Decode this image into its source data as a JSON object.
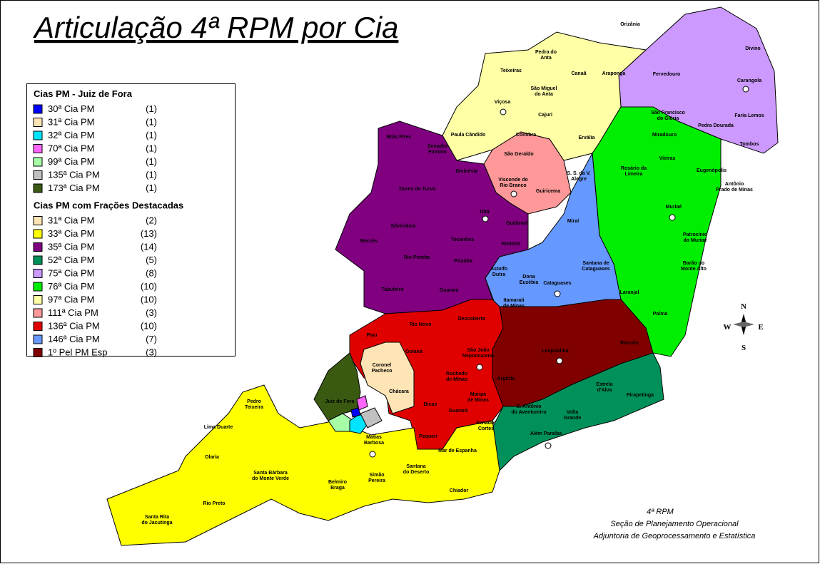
{
  "header": {
    "title": "Articulação 4ª RPM por Cia"
  },
  "legend": {
    "sections": [
      {
        "title": "Cias PM - Juiz de Fora",
        "items": [
          {
            "name": "30ª Cia PM",
            "count": "(1)",
            "color": "#0000ff"
          },
          {
            "name": "31ª Cia PM",
            "count": "(1)",
            "color": "#ffe4b5"
          },
          {
            "name": "32ª Cia PM",
            "count": "(1)",
            "color": "#00e5ff"
          },
          {
            "name": "70ª Cia PM",
            "count": "(1)",
            "color": "#ff66ff"
          },
          {
            "name": "99ª Cia PM",
            "count": "(1)",
            "color": "#a6ffa6"
          },
          {
            "name": "135ª Cia PM",
            "count": "(1)",
            "color": "#c0c0c0"
          },
          {
            "name": "173ª Cia PM",
            "count": "(1)",
            "color": "#3a5a12"
          }
        ]
      },
      {
        "title": "Cias PM com Frações Destacadas",
        "items": [
          {
            "name": "31ª Cia PM",
            "count": "(2)",
            "color": "#ffe4b5"
          },
          {
            "name": "33ª Cia PM",
            "count": "(13)",
            "color": "#ffff00"
          },
          {
            "name": "35ª Cia PM",
            "count": "(14)",
            "color": "#800080"
          },
          {
            "name": "52ª Cia PM",
            "count": "(5)",
            "color": "#00915a"
          },
          {
            "name": "75ª Cia PM",
            "count": "(8)",
            "color": "#cc99ff"
          },
          {
            "name": "76ª Cia PM",
            "count": "(10)",
            "color": "#00ee00"
          },
          {
            "name": "97ª Cia PM",
            "count": "(10)",
            "color": "#ffffa6"
          },
          {
            "name": "111ª Cia PM",
            "count": "(3)",
            "color": "#ff9999"
          },
          {
            "name": "136ª Cia PM",
            "count": "(10)",
            "color": "#e00000"
          },
          {
            "name": "146ª Cia PM",
            "count": "(7)",
            "color": "#6699ff"
          },
          {
            "name": "1º Pel PM Esp",
            "count": "(3)",
            "color": "#800000"
          }
        ]
      }
    ]
  },
  "places": [
    {
      "lines": [
        "Orizânia"
      ]
    },
    {
      "lines": [
        "Divino"
      ]
    },
    {
      "lines": [
        "Pedra do",
        "Anta"
      ]
    },
    {
      "lines": [
        "Teixeiras"
      ]
    },
    {
      "lines": [
        "Canaã"
      ]
    },
    {
      "lines": [
        "Araponga"
      ]
    },
    {
      "lines": [
        "Fervedouro"
      ]
    },
    {
      "lines": [
        "Carangola"
      ]
    },
    {
      "lines": [
        "São Miguel",
        "do Anta"
      ]
    },
    {
      "lines": [
        "Viçosa"
      ]
    },
    {
      "lines": [
        "Cajuri"
      ]
    },
    {
      "lines": [
        "São Francisco",
        "do Glória"
      ]
    },
    {
      "lines": [
        "Faria Lemos"
      ]
    },
    {
      "lines": [
        "Pedra Dourada"
      ]
    },
    {
      "lines": [
        "Tombos"
      ]
    },
    {
      "lines": [
        "Brás Pires"
      ]
    },
    {
      "lines": [
        "Paula Cândido"
      ]
    },
    {
      "lines": [
        "Coimbra"
      ]
    },
    {
      "lines": [
        "Ervália"
      ]
    },
    {
      "lines": [
        "Miradouro"
      ]
    },
    {
      "lines": [
        "Senador",
        "Firmino"
      ]
    },
    {
      "lines": [
        "São Geraldo"
      ]
    },
    {
      "lines": [
        "Vieiras"
      ]
    },
    {
      "lines": [
        "Eugenópolis"
      ]
    },
    {
      "lines": [
        "Divinésia"
      ]
    },
    {
      "lines": [
        "Dores do Turvo"
      ]
    },
    {
      "lines": [
        "Visconde do",
        "Rio Branco"
      ]
    },
    {
      "lines": [
        "Guiricema"
      ]
    },
    {
      "lines": [
        "S. S. da V.",
        "Alegre"
      ]
    },
    {
      "lines": [
        "Rosário da",
        "Limeira"
      ]
    },
    {
      "lines": [
        "Antônio",
        "Prado de Minas"
      ]
    },
    {
      "lines": [
        "Muriaé"
      ]
    },
    {
      "lines": [
        "Ubá"
      ]
    },
    {
      "lines": [
        "Mercês"
      ]
    },
    {
      "lines": [
        "Silveirânia"
      ]
    },
    {
      "lines": [
        "Guidoval"
      ]
    },
    {
      "lines": [
        "Miraí"
      ]
    },
    {
      "lines": [
        "Patrocínio",
        "do Muriaé"
      ]
    },
    {
      "lines": [
        "Tocantins"
      ]
    },
    {
      "lines": [
        "Rodeiro"
      ]
    },
    {
      "lines": [
        "Rio Pomba"
      ]
    },
    {
      "lines": [
        "Piraúba"
      ]
    },
    {
      "lines": [
        "Barão do",
        "Monte Alto"
      ]
    },
    {
      "lines": [
        "Santana de",
        "Cataguases"
      ]
    },
    {
      "lines": [
        "Astolfo",
        "Dutra"
      ]
    },
    {
      "lines": [
        "Dona",
        "Euzébia"
      ]
    },
    {
      "lines": [
        "Cataguases"
      ]
    },
    {
      "lines": [
        "Tabuleiro"
      ]
    },
    {
      "lines": [
        "Guarani"
      ]
    },
    {
      "lines": [
        "Laranjal"
      ]
    },
    {
      "lines": [
        "Itamarati",
        "de Minas"
      ]
    },
    {
      "lines": [
        "Palma"
      ]
    },
    {
      "lines": [
        "Descoberto"
      ]
    },
    {
      "lines": [
        "Rio Novo"
      ]
    },
    {
      "lines": [
        "Piau"
      ]
    },
    {
      "lines": [
        "São João",
        "Nepomuceno"
      ]
    },
    {
      "lines": [
        "Goianá"
      ]
    },
    {
      "lines": [
        "Leopoldina"
      ]
    },
    {
      "lines": [
        "Recreio"
      ]
    },
    {
      "lines": [
        "Coronel",
        "Pacheco"
      ]
    },
    {
      "lines": [
        "Rochedo",
        "de Minas"
      ]
    },
    {
      "lines": [
        "Argirita"
      ]
    },
    {
      "lines": [
        "Estrela",
        "d'Alva"
      ]
    },
    {
      "lines": [
        "Pirapetinga"
      ]
    },
    {
      "lines": [
        "Chácara"
      ]
    },
    {
      "lines": [
        "Juiz de Fora"
      ]
    },
    {
      "lines": [
        "Pedro",
        "Teixeira"
      ]
    },
    {
      "lines": [
        "Maripá",
        "de Minas"
      ]
    },
    {
      "lines": [
        "Bicas"
      ]
    },
    {
      "lines": [
        "Guarará"
      ]
    },
    {
      "lines": [
        "S. Antônio",
        "do Aventureiro"
      ]
    },
    {
      "lines": [
        "Volta",
        "Grande"
      ]
    },
    {
      "lines": [
        "Lima Duarte"
      ]
    },
    {
      "lines": [
        "Senador",
        "Cortes"
      ]
    },
    {
      "lines": [
        "Além Paraíba"
      ]
    },
    {
      "lines": [
        "Matias",
        "Barbosa"
      ]
    },
    {
      "lines": [
        "Pequeri"
      ]
    },
    {
      "lines": [
        "Olaria"
      ]
    },
    {
      "lines": [
        "Mar de Espanha"
      ]
    },
    {
      "lines": [
        "Santa Bárbara",
        "do Monte Verde"
      ]
    },
    {
      "lines": [
        "Santana",
        "do Deserto"
      ]
    },
    {
      "lines": [
        "Simão",
        "Pereira"
      ]
    },
    {
      "lines": [
        "Belmiro",
        "Braga"
      ]
    },
    {
      "lines": [
        "Chiador"
      ]
    },
    {
      "lines": [
        "Rio Preto"
      ]
    },
    {
      "lines": [
        "Santa Rita",
        "do Jacutinga"
      ]
    }
  ],
  "compass": {
    "n": "N",
    "s": "S",
    "e": "E",
    "w": "W"
  },
  "footer": {
    "lines": [
      "4ª RPM",
      "Seção de Planejamento Operacional",
      "Adjuntoria de Geoprocessamento e Estatística"
    ]
  }
}
